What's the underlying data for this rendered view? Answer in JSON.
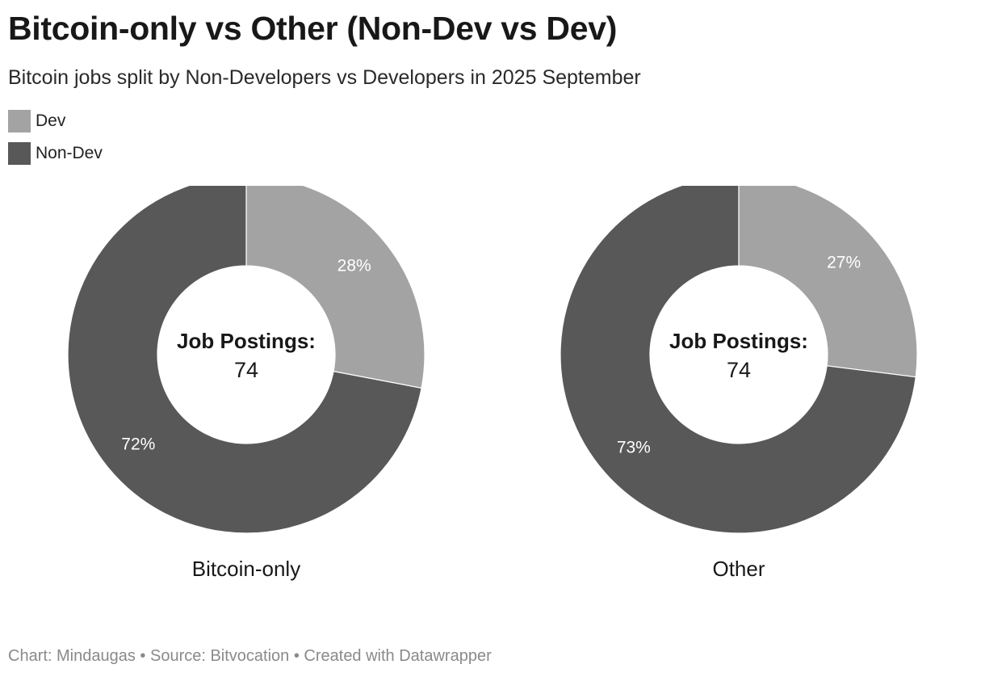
{
  "chart_data": {
    "type": "pie",
    "variant": "donut",
    "title": "Bitcoin-only vs Other (Non-Dev vs Dev)",
    "subtitle": "Bitcoin jobs split by Non-Developers vs Developers in 2025 September",
    "legend": [
      {
        "name": "Dev",
        "color": "#a3a3a3"
      },
      {
        "name": "Non-Dev",
        "color": "#585858"
      }
    ],
    "legend_position": "top-left",
    "center_label": "Job Postings:",
    "charts": [
      {
        "name": "Bitcoin-only",
        "total": "74",
        "slices": [
          {
            "name": "Dev",
            "value": 28,
            "label": "28%"
          },
          {
            "name": "Non-Dev",
            "value": 72,
            "label": "72%"
          }
        ]
      },
      {
        "name": "Other",
        "total": "74",
        "slices": [
          {
            "name": "Dev",
            "value": 27,
            "label": "27%"
          },
          {
            "name": "Non-Dev",
            "value": 73,
            "label": "73%"
          }
        ]
      }
    ]
  },
  "footer": {
    "text": "Chart: Mindaugas • Source: Bitvocation • Created with Datawrapper"
  }
}
